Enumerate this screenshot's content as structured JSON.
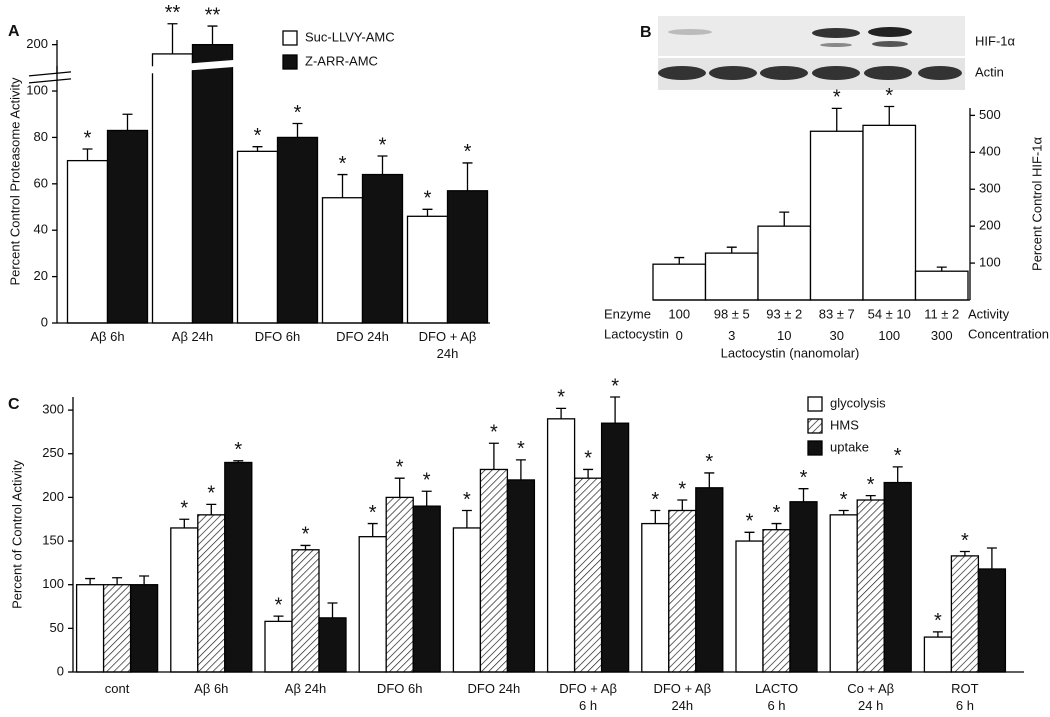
{
  "chart_data": [
    {
      "type": "bar",
      "panel_label": "A",
      "ylabel": "Percent Control Proteasome Activity",
      "categories": [
        "Aβ 6h",
        "Aβ 24h",
        "DFO 6h",
        "DFO 24h",
        "DFO + Aβ\n24h"
      ],
      "ylim": [
        0,
        202
      ],
      "yticks": [
        0,
        20,
        40,
        60,
        80,
        100,
        200
      ],
      "axis_break": [
        110,
        190
      ],
      "series": [
        {
          "name": "Suc-LLVY-AMC",
          "color": "#ffffff",
          "values": [
            70,
            196,
            74,
            54,
            46
          ],
          "errors": [
            5,
            13,
            2,
            10,
            3
          ],
          "markers": [
            "*",
            "**",
            "*",
            "*",
            "*"
          ]
        },
        {
          "name": "Z-ARR-AMC",
          "color": "#111111",
          "values": [
            83,
            200,
            80,
            64,
            57
          ],
          "errors": [
            7,
            8,
            6,
            8,
            12
          ],
          "markers": [
            null,
            "**",
            "*",
            "*",
            "*"
          ]
        }
      ]
    },
    {
      "type": "bar",
      "panel_label": "B",
      "ylabel": "Percent Control HIF-1α",
      "blot_labels": [
        "HIF-1α",
        "Actin"
      ],
      "xlabel": "Lactocystin (nanomolar)",
      "category_row_label": "Lactocystin",
      "category_row_end": "Concentration",
      "categories": [
        "0",
        "3",
        "10",
        "30",
        "100",
        "300"
      ],
      "activity_row": {
        "label": "Enzyme",
        "values": [
          "100",
          "98 ± 5",
          "93 ± 2",
          "83 ± 7",
          "54 ± 10",
          "11 ± 2"
        ],
        "end": "Activity"
      },
      "ylim": [
        0,
        520
      ],
      "yticks": [
        100,
        200,
        300,
        400,
        500
      ],
      "series": [
        {
          "color": "#ffffff",
          "values": [
            97,
            127,
            200,
            457,
            473,
            78
          ],
          "errors": [
            18,
            16,
            38,
            62,
            51,
            11
          ],
          "markers": [
            null,
            null,
            null,
            "*",
            "*",
            null
          ]
        }
      ]
    },
    {
      "type": "bar",
      "panel_label": "C",
      "ylabel": "Percent of Control Activity",
      "categories": [
        "cont",
        "Aβ 6h",
        "Aβ 24h",
        "DFO 6h",
        "DFO 24h",
        "DFO + Aβ\n6 h",
        "DFO + Aβ\n24h",
        "LACTO\n6 h",
        "Co + Aβ\n24 h",
        "ROT\n6 h"
      ],
      "ylim": [
        0,
        315
      ],
      "yticks": [
        0,
        50,
        100,
        150,
        200,
        250,
        300
      ],
      "series": [
        {
          "name": "glycolysis",
          "color": "#ffffff",
          "values": [
            100,
            165,
            58,
            155,
            165,
            290,
            170,
            150,
            180,
            40
          ],
          "errors": [
            7,
            10,
            6,
            15,
            20,
            12,
            15,
            10,
            5,
            6
          ],
          "markers": [
            null,
            "*",
            "*",
            "*",
            "*",
            "*",
            "*",
            "*",
            "*",
            "*"
          ]
        },
        {
          "name": "HMS",
          "color": "#ffffff",
          "pattern": "hatch",
          "values": [
            100,
            180,
            140,
            200,
            232,
            222,
            185,
            163,
            197,
            133
          ],
          "errors": [
            8,
            12,
            5,
            22,
            30,
            10,
            12,
            7,
            5,
            5
          ],
          "markers": [
            null,
            "*",
            "*",
            "*",
            "*",
            "*",
            "*",
            "*",
            "*",
            "*"
          ]
        },
        {
          "name": "uptake",
          "color": "#111111",
          "values": [
            100,
            240,
            62,
            190,
            220,
            285,
            211,
            195,
            217,
            118
          ],
          "errors": [
            10,
            2,
            17,
            17,
            23,
            30,
            17,
            15,
            18,
            24
          ],
          "markers": [
            null,
            "*",
            null,
            "*",
            "*",
            "*",
            "*",
            "*",
            "*",
            null
          ]
        }
      ]
    }
  ]
}
